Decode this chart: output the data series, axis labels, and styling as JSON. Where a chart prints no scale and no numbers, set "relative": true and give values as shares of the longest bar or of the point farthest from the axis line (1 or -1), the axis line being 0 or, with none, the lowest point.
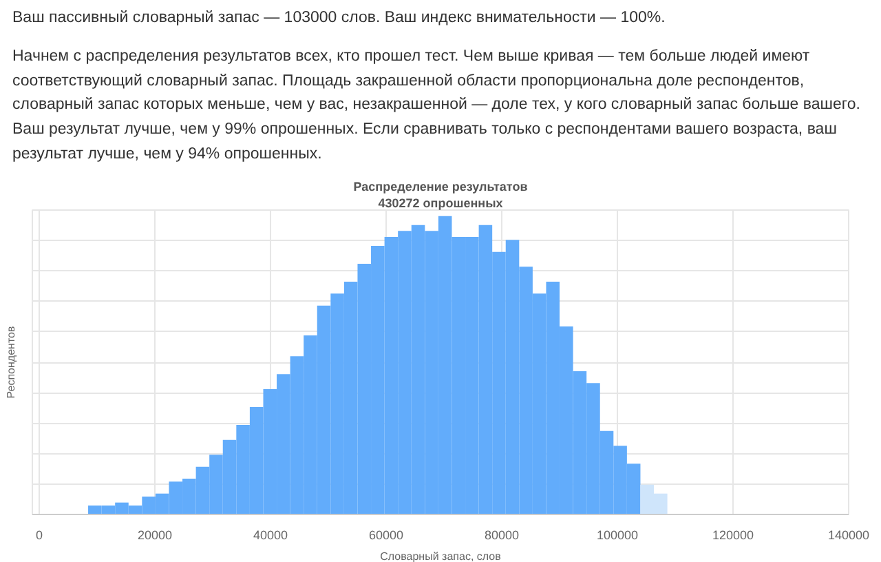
{
  "chart_data": {
    "type": "bar",
    "title": "Распределение результатов",
    "subtitle": "430272 опрошенных",
    "xlabel": "Словарный запас, слов",
    "ylabel": "Респондентов",
    "annotations": [
      "Ваш пассивный словарный запас — 103000 слов. Ваш индекс внимательности — 100%.",
      "Начнем с распределения результатов всех, кто прошел тест. Чем выше кривая — тем больше людей имеют соответствующий словарный запас. Площадь закрашенной области пропорциональна доле респондентов, словарный запас которых меньше, чем у вас, незакрашенной — доле тех, у кого словарный запас больше вашего. Ваш результат лучше, чем у 99% опрошенных. Если сравнивать только с респондентами вашего возраста, ваш результат лучше, чем у 94% опрошенных."
    ],
    "relative": true,
    "x": [
      9615,
      11945,
      14275,
      16605,
      18935,
      21265,
      23595,
      25925,
      28255,
      30585,
      32915,
      35245,
      37575,
      39905,
      42235,
      44565,
      46895,
      49225,
      51555,
      53885,
      56215,
      58545,
      60875,
      63205,
      65535,
      67865,
      70195,
      72525,
      74855,
      77185,
      79515,
      81845,
      84175,
      86505,
      88835,
      91165,
      93495,
      95825,
      98155,
      100485,
      102815,
      105145,
      107475
    ],
    "values": [
      0.03,
      0.03,
      0.04,
      0.03,
      0.06,
      0.07,
      0.11,
      0.12,
      0.16,
      0.2,
      0.25,
      0.3,
      0.36,
      0.42,
      0.47,
      0.53,
      0.6,
      0.7,
      0.74,
      0.78,
      0.84,
      0.9,
      0.93,
      0.95,
      0.97,
      0.95,
      1,
      0.93,
      0.93,
      0.97,
      0.88,
      0.92,
      0.83,
      0.74,
      0.78,
      0.63,
      0.48,
      0.44,
      0.28,
      0.23,
      0.17,
      0.1,
      0.07
    ],
    "colors": [
      "#62acfb",
      "#62acfb",
      "#62acfb",
      "#62acfb",
      "#62acfb",
      "#62acfb",
      "#62acfb",
      "#62acfb",
      "#62acfb",
      "#62acfb",
      "#62acfb",
      "#62acfb",
      "#62acfb",
      "#62acfb",
      "#62acfb",
      "#62acfb",
      "#62acfb",
      "#62acfb",
      "#62acfb",
      "#62acfb",
      "#62acfb",
      "#62acfb",
      "#62acfb",
      "#62acfb",
      "#62acfb",
      "#62acfb",
      "#62acfb",
      "#62acfb",
      "#62acfb",
      "#62acfb",
      "#62acfb",
      "#62acfb",
      "#62acfb",
      "#62acfb",
      "#62acfb",
      "#62acfb",
      "#62acfb",
      "#62acfb",
      "#62acfb",
      "#62acfb",
      "#62acfb",
      "#cfe5fb",
      "#cfe5fb"
    ],
    "xlim": [
      -1200,
      140000
    ],
    "xticks": [
      0,
      20000,
      40000,
      60000,
      80000,
      100000,
      120000,
      140000
    ],
    "grid": true
  }
}
